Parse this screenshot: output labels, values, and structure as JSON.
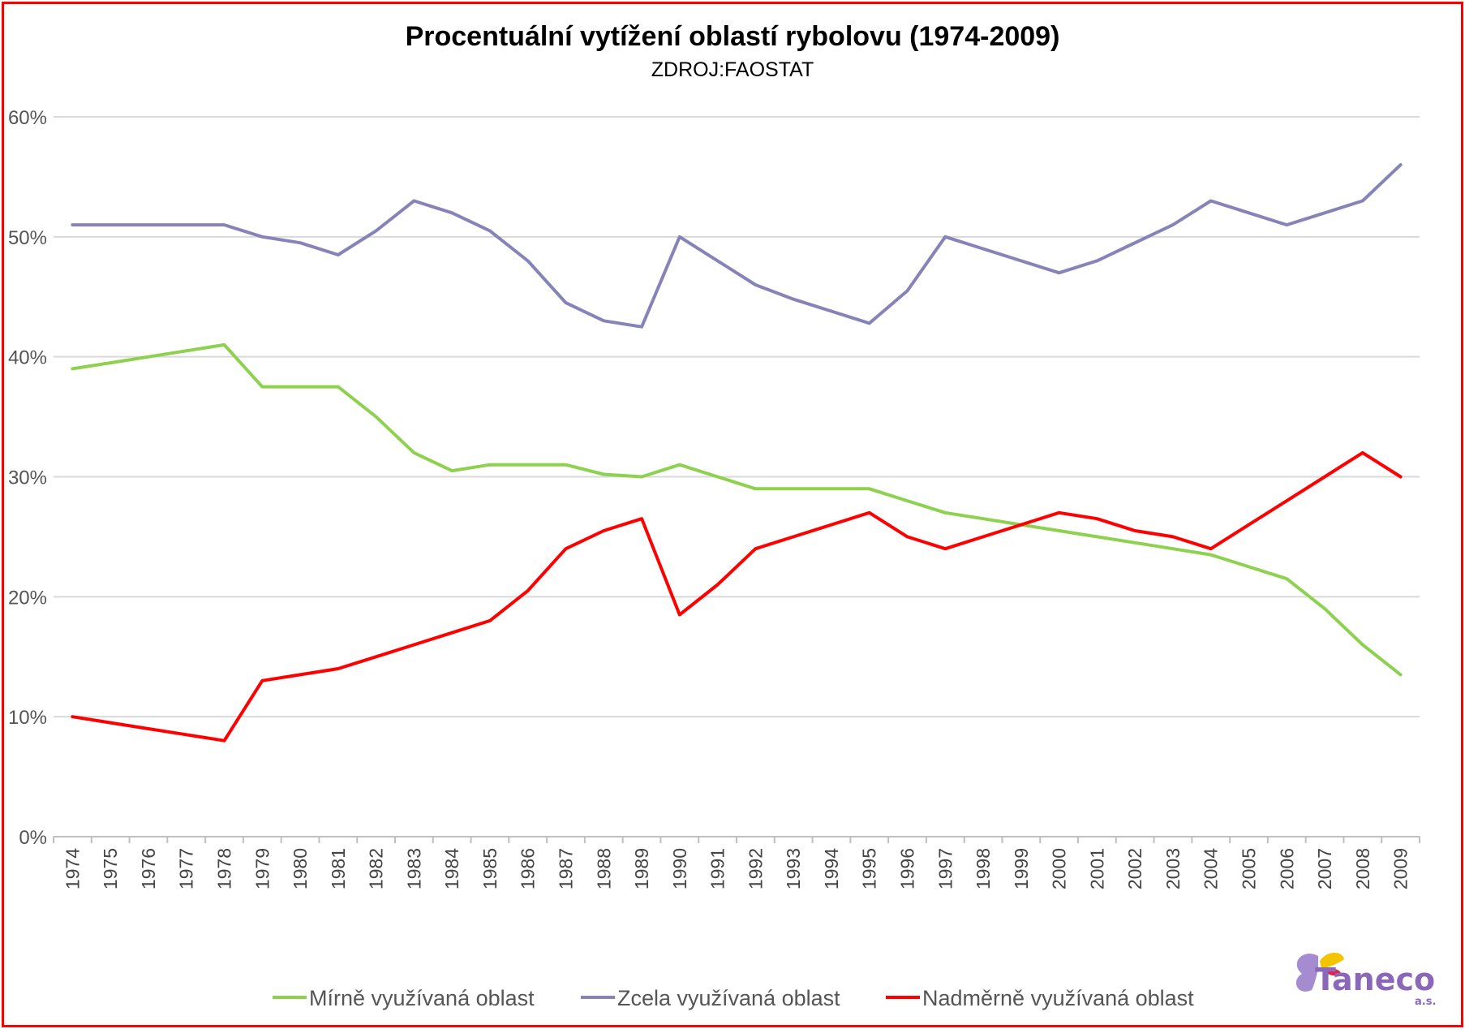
{
  "chart_data": {
    "type": "line",
    "title": "Procentuální vytížení oblastí rybolovu (1974-2009)",
    "subtitle": "ZDROJ:FAOSTAT",
    "xlabel": "",
    "ylabel": "",
    "ylim": [
      0,
      60
    ],
    "y_ticks": [
      "0%",
      "10%",
      "20%",
      "30%",
      "40%",
      "50%",
      "60%"
    ],
    "grid": true,
    "legend_position": "bottom",
    "x": [
      "1974",
      "1975",
      "1976",
      "1977",
      "1978",
      "1979",
      "1980",
      "1981",
      "1982",
      "1983",
      "1984",
      "1985",
      "1986",
      "1987",
      "1988",
      "1989",
      "1990",
      "1991",
      "1992",
      "1993",
      "1994",
      "1995",
      "1996",
      "1997",
      "1998",
      "1999",
      "2000",
      "2001",
      "2002",
      "2003",
      "2004",
      "2005",
      "2006",
      "2007",
      "2008",
      "2009"
    ],
    "series": [
      {
        "name": "Mírně využívaná oblast",
        "color": "#8dd14f",
        "values": [
          39,
          39.5,
          40,
          40.5,
          41,
          37.5,
          37.5,
          37.5,
          35,
          32,
          30.5,
          31,
          31,
          31,
          30.2,
          30,
          31,
          30,
          29,
          29,
          29,
          29,
          28,
          27,
          26.5,
          26,
          25.5,
          25,
          24.5,
          24,
          23.5,
          22.5,
          21.5,
          19,
          16,
          13.5
        ]
      },
      {
        "name": "Zcela využívaná oblast",
        "color": "#8683b8",
        "values": [
          51,
          51,
          51,
          51,
          51,
          50,
          49.5,
          48.5,
          50.5,
          53,
          52,
          50.5,
          48,
          44.5,
          43,
          42.5,
          50,
          48,
          46,
          44.8,
          43.8,
          42.8,
          45.5,
          50,
          49,
          48,
          47,
          48,
          49.5,
          51,
          53,
          52,
          51,
          52,
          53,
          56
        ]
      },
      {
        "name": "Nadměrně využívaná oblast",
        "color": "#ff0000",
        "values": [
          10,
          9.5,
          9,
          8.5,
          8,
          13,
          13.5,
          14,
          15,
          16,
          17,
          18,
          20.5,
          24,
          25.5,
          26.5,
          18.5,
          21,
          24,
          25,
          26,
          27,
          25,
          24,
          25,
          26,
          27,
          26.5,
          25.5,
          25,
          24,
          26,
          28,
          30,
          32,
          30
        ]
      }
    ]
  },
  "logo": {
    "text": "Taneco",
    "suffix": "a.s.",
    "icon": "butterfly-icon"
  }
}
